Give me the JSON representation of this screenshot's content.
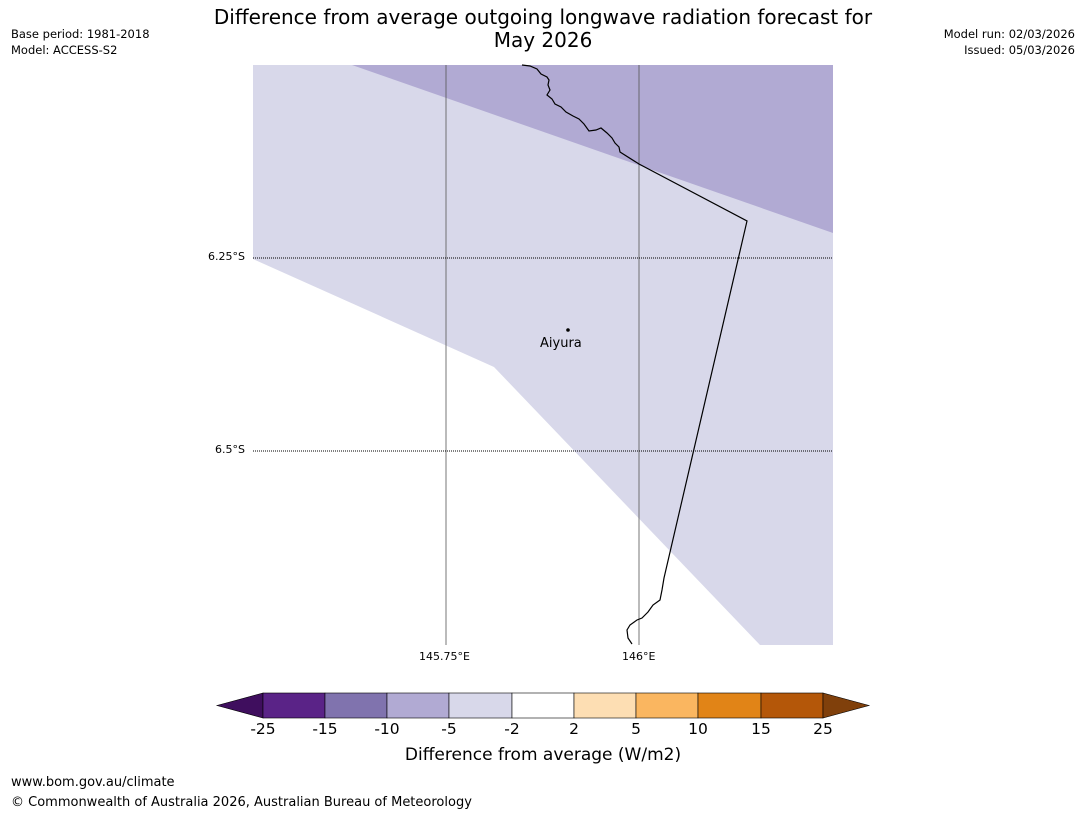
{
  "header": {
    "title_line1": "Difference from average outgoing longwave radiation forecast for",
    "title_line2": "May 2026",
    "base_period": "Base period: 1981-2018",
    "model": "Model: ACCESS-S2",
    "model_run": "Model run: 02/03/2026",
    "issued": "Issued: 05/03/2026"
  },
  "map": {
    "lat_labels": [
      "6.25°S",
      "6.5°S"
    ],
    "lon_labels": [
      "145.75°E",
      "146°E"
    ],
    "place": "Aiyura",
    "colors": {
      "border": "#000000",
      "gridline": "#555555",
      "neg5_to_neg2": "#d8d8ea",
      "neg10_to_neg5": "#b1aad3"
    }
  },
  "colorbar": {
    "label": "Difference from average (W/m2)",
    "ticks": [
      "-25",
      "-15",
      "-10",
      "-5",
      "-2",
      "2",
      "5",
      "10",
      "15",
      "25"
    ],
    "colors": [
      "#3f0e5e",
      "#5a2387",
      "#8073ae",
      "#b1aad3",
      "#d8d8ea",
      "#ffffff",
      "#fddeb3",
      "#fab660",
      "#e18417",
      "#b45709",
      "#80400b"
    ]
  },
  "footer": {
    "url": "www.bom.gov.au/climate",
    "copyright": "© Commonwealth of Australia 2026, Australian Bureau of Meteorology"
  }
}
